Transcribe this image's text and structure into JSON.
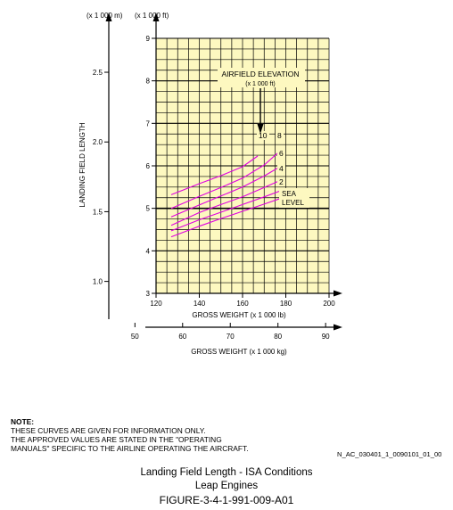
{
  "chart_data": {
    "type": "line",
    "title": "",
    "colors": {
      "plot_bg": "#fdf8c0",
      "grid": "#000000",
      "curve": "#e000e0"
    },
    "top_units": {
      "meters": "(x 1 000 m)",
      "feet": "(x 1 000 ft)"
    },
    "ylabel": "LANDING FIELD LENGTH",
    "y_m_ticks": [
      "1.0",
      "1.5",
      "2.0",
      "2.5"
    ],
    "y_ft_ticks": [
      "3",
      "4",
      "5",
      "6",
      "7",
      "8",
      "9"
    ],
    "ylim_ft": [
      3,
      9
    ],
    "xlabel_lb": "GROSS WEIGHT (x 1 000 lb)",
    "x_lb_ticks": [
      "120",
      "140",
      "160",
      "180",
      "200"
    ],
    "xlim_lb": [
      120,
      200
    ],
    "xlabel_kg": "GROSS WEIGHT (x 1 000 kg)",
    "x_kg_ticks": [
      "50",
      "60",
      "70",
      "80",
      "90"
    ],
    "grid": true,
    "annotation": {
      "text_line1": "AIRFIELD ELEVATION",
      "text_line2": "(x 1 000 ft)"
    },
    "series": [
      {
        "name": "SEA LEVEL",
        "label_lines": [
          "SEA",
          "LEVEL"
        ],
        "x": [
          127,
          140,
          150,
          160,
          170,
          178
        ],
        "y": [
          4.33,
          4.58,
          4.76,
          4.93,
          5.1,
          5.24
        ]
      },
      {
        "name": "2",
        "label_lines": [
          "2"
        ],
        "x": [
          127,
          140,
          150,
          160,
          170,
          178
        ],
        "y": [
          4.47,
          4.73,
          4.91,
          5.09,
          5.27,
          5.42
        ]
      },
      {
        "name": "4",
        "label_lines": [
          "4"
        ],
        "x": [
          127,
          140,
          150,
          160,
          170,
          178
        ],
        "y": [
          4.6,
          4.9,
          5.09,
          5.27,
          5.49,
          5.67
        ]
      },
      {
        "name": "6",
        "label_lines": [
          "6"
        ],
        "x": [
          127,
          140,
          150,
          160,
          170,
          178
        ],
        "y": [
          4.8,
          5.08,
          5.29,
          5.5,
          5.76,
          6.0
        ]
      },
      {
        "name": "8",
        "label_lines": [
          "8"
        ],
        "x": [
          127,
          140,
          150,
          160,
          170,
          178
        ],
        "y": [
          5.0,
          5.28,
          5.49,
          5.71,
          6.02,
          6.38
        ]
      },
      {
        "name": "10",
        "label_lines": [
          "10"
        ],
        "x": [
          127,
          140,
          150,
          160,
          167
        ],
        "y": [
          5.32,
          5.58,
          5.77,
          5.98,
          6.23
        ]
      }
    ]
  },
  "note": {
    "heading": "NOTE:",
    "lines": [
      "THESE CURVES ARE GIVEN FOR INFORMATION ONLY.",
      "THE APPROVED VALUES ARE STATED IN THE \"OPERATING",
      "MANUALS\" SPECIFIC TO THE AIRLINE OPERATING THE AIRCRAFT."
    ]
  },
  "reference_code": "N_AC_030401_1_0090101_01_00",
  "caption": {
    "line1": "Landing Field Length - ISA Conditions",
    "line2": "Leap Engines",
    "line3": "FIGURE-3-4-1-991-009-A01"
  }
}
